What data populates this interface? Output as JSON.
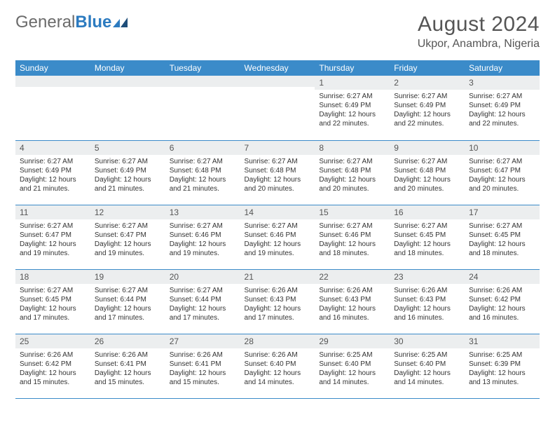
{
  "logo": {
    "general": "General",
    "blue": "Blue"
  },
  "header": {
    "month_title": "August 2024",
    "location": "Ukpor, Anambra, Nigeria"
  },
  "day_headers": [
    "Sunday",
    "Monday",
    "Tuesday",
    "Wednesday",
    "Thursday",
    "Friday",
    "Saturday"
  ],
  "style": {
    "header_bg": "#3b8bc9",
    "header_fg": "#ffffff",
    "daynum_bg": "#eceeef",
    "body_font_size": 10,
    "month_title_size": 30,
    "location_size": 16,
    "logo_accent": "#2c7bc0"
  },
  "weeks": [
    [
      {
        "n": "",
        "sr": "",
        "ss": "",
        "dl": ""
      },
      {
        "n": "",
        "sr": "",
        "ss": "",
        "dl": ""
      },
      {
        "n": "",
        "sr": "",
        "ss": "",
        "dl": ""
      },
      {
        "n": "",
        "sr": "",
        "ss": "",
        "dl": ""
      },
      {
        "n": "1",
        "sr": "Sunrise: 6:27 AM",
        "ss": "Sunset: 6:49 PM",
        "dl": "Daylight: 12 hours and 22 minutes."
      },
      {
        "n": "2",
        "sr": "Sunrise: 6:27 AM",
        "ss": "Sunset: 6:49 PM",
        "dl": "Daylight: 12 hours and 22 minutes."
      },
      {
        "n": "3",
        "sr": "Sunrise: 6:27 AM",
        "ss": "Sunset: 6:49 PM",
        "dl": "Daylight: 12 hours and 22 minutes."
      }
    ],
    [
      {
        "n": "4",
        "sr": "Sunrise: 6:27 AM",
        "ss": "Sunset: 6:49 PM",
        "dl": "Daylight: 12 hours and 21 minutes."
      },
      {
        "n": "5",
        "sr": "Sunrise: 6:27 AM",
        "ss": "Sunset: 6:49 PM",
        "dl": "Daylight: 12 hours and 21 minutes."
      },
      {
        "n": "6",
        "sr": "Sunrise: 6:27 AM",
        "ss": "Sunset: 6:48 PM",
        "dl": "Daylight: 12 hours and 21 minutes."
      },
      {
        "n": "7",
        "sr": "Sunrise: 6:27 AM",
        "ss": "Sunset: 6:48 PM",
        "dl": "Daylight: 12 hours and 20 minutes."
      },
      {
        "n": "8",
        "sr": "Sunrise: 6:27 AM",
        "ss": "Sunset: 6:48 PM",
        "dl": "Daylight: 12 hours and 20 minutes."
      },
      {
        "n": "9",
        "sr": "Sunrise: 6:27 AM",
        "ss": "Sunset: 6:48 PM",
        "dl": "Daylight: 12 hours and 20 minutes."
      },
      {
        "n": "10",
        "sr": "Sunrise: 6:27 AM",
        "ss": "Sunset: 6:47 PM",
        "dl": "Daylight: 12 hours and 20 minutes."
      }
    ],
    [
      {
        "n": "11",
        "sr": "Sunrise: 6:27 AM",
        "ss": "Sunset: 6:47 PM",
        "dl": "Daylight: 12 hours and 19 minutes."
      },
      {
        "n": "12",
        "sr": "Sunrise: 6:27 AM",
        "ss": "Sunset: 6:47 PM",
        "dl": "Daylight: 12 hours and 19 minutes."
      },
      {
        "n": "13",
        "sr": "Sunrise: 6:27 AM",
        "ss": "Sunset: 6:46 PM",
        "dl": "Daylight: 12 hours and 19 minutes."
      },
      {
        "n": "14",
        "sr": "Sunrise: 6:27 AM",
        "ss": "Sunset: 6:46 PM",
        "dl": "Daylight: 12 hours and 19 minutes."
      },
      {
        "n": "15",
        "sr": "Sunrise: 6:27 AM",
        "ss": "Sunset: 6:46 PM",
        "dl": "Daylight: 12 hours and 18 minutes."
      },
      {
        "n": "16",
        "sr": "Sunrise: 6:27 AM",
        "ss": "Sunset: 6:45 PM",
        "dl": "Daylight: 12 hours and 18 minutes."
      },
      {
        "n": "17",
        "sr": "Sunrise: 6:27 AM",
        "ss": "Sunset: 6:45 PM",
        "dl": "Daylight: 12 hours and 18 minutes."
      }
    ],
    [
      {
        "n": "18",
        "sr": "Sunrise: 6:27 AM",
        "ss": "Sunset: 6:45 PM",
        "dl": "Daylight: 12 hours and 17 minutes."
      },
      {
        "n": "19",
        "sr": "Sunrise: 6:27 AM",
        "ss": "Sunset: 6:44 PM",
        "dl": "Daylight: 12 hours and 17 minutes."
      },
      {
        "n": "20",
        "sr": "Sunrise: 6:27 AM",
        "ss": "Sunset: 6:44 PM",
        "dl": "Daylight: 12 hours and 17 minutes."
      },
      {
        "n": "21",
        "sr": "Sunrise: 6:26 AM",
        "ss": "Sunset: 6:43 PM",
        "dl": "Daylight: 12 hours and 17 minutes."
      },
      {
        "n": "22",
        "sr": "Sunrise: 6:26 AM",
        "ss": "Sunset: 6:43 PM",
        "dl": "Daylight: 12 hours and 16 minutes."
      },
      {
        "n": "23",
        "sr": "Sunrise: 6:26 AM",
        "ss": "Sunset: 6:43 PM",
        "dl": "Daylight: 12 hours and 16 minutes."
      },
      {
        "n": "24",
        "sr": "Sunrise: 6:26 AM",
        "ss": "Sunset: 6:42 PM",
        "dl": "Daylight: 12 hours and 16 minutes."
      }
    ],
    [
      {
        "n": "25",
        "sr": "Sunrise: 6:26 AM",
        "ss": "Sunset: 6:42 PM",
        "dl": "Daylight: 12 hours and 15 minutes."
      },
      {
        "n": "26",
        "sr": "Sunrise: 6:26 AM",
        "ss": "Sunset: 6:41 PM",
        "dl": "Daylight: 12 hours and 15 minutes."
      },
      {
        "n": "27",
        "sr": "Sunrise: 6:26 AM",
        "ss": "Sunset: 6:41 PM",
        "dl": "Daylight: 12 hours and 15 minutes."
      },
      {
        "n": "28",
        "sr": "Sunrise: 6:26 AM",
        "ss": "Sunset: 6:40 PM",
        "dl": "Daylight: 12 hours and 14 minutes."
      },
      {
        "n": "29",
        "sr": "Sunrise: 6:25 AM",
        "ss": "Sunset: 6:40 PM",
        "dl": "Daylight: 12 hours and 14 minutes."
      },
      {
        "n": "30",
        "sr": "Sunrise: 6:25 AM",
        "ss": "Sunset: 6:40 PM",
        "dl": "Daylight: 12 hours and 14 minutes."
      },
      {
        "n": "31",
        "sr": "Sunrise: 6:25 AM",
        "ss": "Sunset: 6:39 PM",
        "dl": "Daylight: 12 hours and 13 minutes."
      }
    ]
  ]
}
